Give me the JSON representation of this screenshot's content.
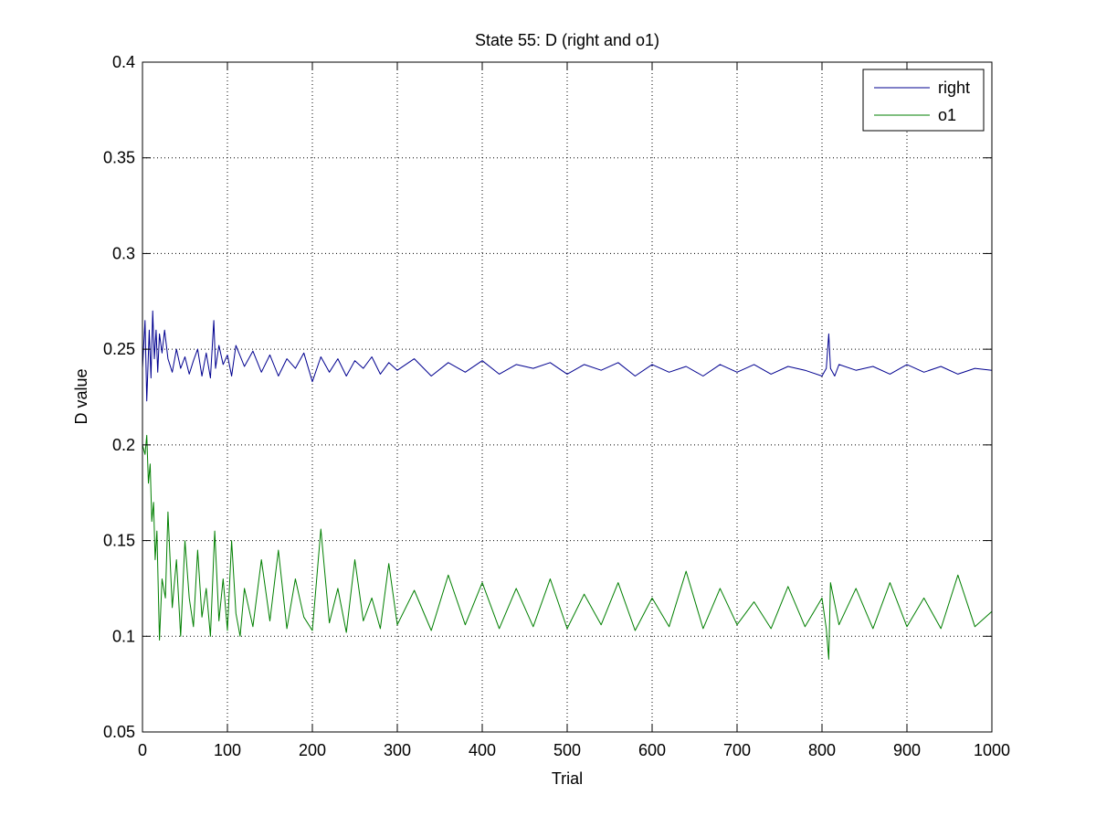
{
  "chart_data": {
    "type": "line",
    "title": "State 55: D (right and o1)",
    "xlabel": "Trial",
    "ylabel": "D value",
    "xlim": [
      0,
      1000
    ],
    "ylim": [
      0.05,
      0.4
    ],
    "xticks": [
      0,
      100,
      200,
      300,
      400,
      500,
      600,
      700,
      800,
      900,
      1000
    ],
    "xtick_labels": [
      "0",
      "100",
      "200",
      "300",
      "400",
      "500",
      "600",
      "700",
      "800",
      "900",
      "1000"
    ],
    "yticks": [
      0.05,
      0.1,
      0.15,
      0.2,
      0.25,
      0.3,
      0.35,
      0.4
    ],
    "ytick_labels": [
      "0.05",
      "0.1",
      "0.15",
      "0.2",
      "0.25",
      "0.3",
      "0.35",
      "0.4"
    ],
    "grid": true,
    "legend": "top-right",
    "series": [
      {
        "name": "right",
        "color": "#00008f",
        "x": [
          0,
          3,
          5,
          8,
          10,
          12,
          14,
          16,
          18,
          20,
          23,
          26,
          30,
          35,
          40,
          45,
          50,
          55,
          60,
          65,
          70,
          75,
          80,
          84,
          86,
          90,
          95,
          100,
          105,
          110,
          120,
          130,
          140,
          150,
          160,
          170,
          180,
          190,
          200,
          210,
          220,
          230,
          240,
          250,
          260,
          270,
          280,
          290,
          300,
          320,
          340,
          360,
          380,
          400,
          420,
          440,
          460,
          480,
          500,
          520,
          540,
          560,
          580,
          600,
          620,
          640,
          660,
          680,
          700,
          720,
          740,
          760,
          780,
          800,
          805,
          808,
          810,
          815,
          820,
          840,
          860,
          880,
          900,
          920,
          940,
          960,
          980,
          1000
        ],
        "y": [
          0.24,
          0.265,
          0.223,
          0.26,
          0.235,
          0.27,
          0.245,
          0.26,
          0.238,
          0.258,
          0.248,
          0.26,
          0.245,
          0.238,
          0.25,
          0.24,
          0.246,
          0.237,
          0.244,
          0.25,
          0.236,
          0.248,
          0.235,
          0.265,
          0.24,
          0.252,
          0.242,
          0.247,
          0.236,
          0.252,
          0.241,
          0.249,
          0.238,
          0.247,
          0.236,
          0.245,
          0.24,
          0.248,
          0.233,
          0.246,
          0.238,
          0.245,
          0.236,
          0.244,
          0.24,
          0.246,
          0.237,
          0.243,
          0.239,
          0.245,
          0.236,
          0.243,
          0.238,
          0.244,
          0.237,
          0.242,
          0.24,
          0.243,
          0.237,
          0.242,
          0.239,
          0.243,
          0.236,
          0.242,
          0.238,
          0.241,
          0.236,
          0.242,
          0.238,
          0.242,
          0.237,
          0.241,
          0.239,
          0.236,
          0.24,
          0.258,
          0.24,
          0.236,
          0.242,
          0.239,
          0.241,
          0.237,
          0.242,
          0.238,
          0.241,
          0.237,
          0.24,
          0.239
        ]
      },
      {
        "name": "o1",
        "color": "#007f00",
        "x": [
          0,
          3,
          5,
          7,
          9,
          11,
          13,
          15,
          17,
          20,
          23,
          27,
          30,
          35,
          40,
          45,
          50,
          55,
          60,
          65,
          70,
          75,
          80,
          85,
          90,
          95,
          100,
          105,
          110,
          115,
          120,
          130,
          140,
          150,
          160,
          170,
          180,
          190,
          200,
          210,
          220,
          230,
          240,
          250,
          260,
          270,
          280,
          290,
          300,
          320,
          340,
          360,
          380,
          400,
          420,
          440,
          460,
          480,
          500,
          520,
          540,
          560,
          580,
          600,
          620,
          640,
          660,
          680,
          700,
          720,
          740,
          760,
          780,
          800,
          805,
          808,
          810,
          820,
          840,
          860,
          880,
          900,
          920,
          940,
          960,
          980,
          1000
        ],
        "y": [
          0.2,
          0.195,
          0.205,
          0.18,
          0.19,
          0.16,
          0.17,
          0.14,
          0.155,
          0.098,
          0.13,
          0.12,
          0.165,
          0.115,
          0.14,
          0.1,
          0.15,
          0.12,
          0.105,
          0.145,
          0.11,
          0.125,
          0.1,
          0.155,
          0.108,
          0.13,
          0.103,
          0.15,
          0.112,
          0.1,
          0.125,
          0.105,
          0.14,
          0.108,
          0.145,
          0.104,
          0.13,
          0.11,
          0.103,
          0.156,
          0.107,
          0.125,
          0.102,
          0.14,
          0.108,
          0.12,
          0.104,
          0.138,
          0.106,
          0.124,
          0.103,
          0.132,
          0.106,
          0.128,
          0.104,
          0.125,
          0.105,
          0.13,
          0.104,
          0.122,
          0.106,
          0.128,
          0.103,
          0.12,
          0.105,
          0.134,
          0.104,
          0.125,
          0.106,
          0.118,
          0.104,
          0.126,
          0.105,
          0.12,
          0.104,
          0.088,
          0.128,
          0.106,
          0.125,
          0.104,
          0.128,
          0.105,
          0.12,
          0.104,
          0.132,
          0.105,
          0.113
        ]
      }
    ]
  }
}
